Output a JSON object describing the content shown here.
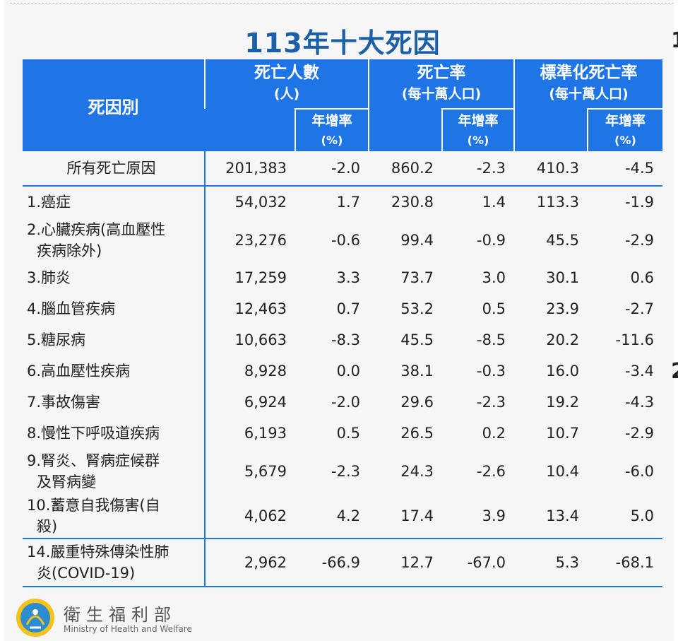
{
  "title": "113年十大死因",
  "header": {
    "cause": "死因別",
    "groups": [
      {
        "label": "死亡人數",
        "sub": "(人)"
      },
      {
        "label": "死亡率",
        "sub": "(每十萬人口)"
      },
      {
        "label": "標準化死亡率",
        "sub": "(每十萬人口)"
      }
    ],
    "growth": "年增率",
    "unit": "(%)"
  },
  "all_causes": {
    "name": "所有死亡原因",
    "values": [
      "201,383",
      "-2.0",
      "860.2",
      "-2.3",
      "410.3",
      "-4.5"
    ]
  },
  "rows": [
    {
      "line1": "1.癌症",
      "line2": "",
      "values": [
        "54,032",
        "1.7",
        "230.8",
        "1.4",
        "113.3",
        "-1.9"
      ]
    },
    {
      "line1": "2.心臟疾病(高血壓性",
      "line2": "疾病除外)",
      "values": [
        "23,276",
        "-0.6",
        "99.4",
        "-0.9",
        "45.5",
        "-2.9"
      ]
    },
    {
      "line1": "3.肺炎",
      "line2": "",
      "values": [
        "17,259",
        "3.3",
        "73.7",
        "3.0",
        "30.1",
        "0.6"
      ]
    },
    {
      "line1": "4.腦血管疾病",
      "line2": "",
      "values": [
        "12,463",
        "0.7",
        "53.2",
        "0.5",
        "23.9",
        "-2.7"
      ]
    },
    {
      "line1": "5.糖尿病",
      "line2": "",
      "values": [
        "10,663",
        "-8.3",
        "45.5",
        "-8.5",
        "20.2",
        "-11.6"
      ]
    },
    {
      "line1": "6.高血壓性疾病",
      "line2": "",
      "values": [
        "8,928",
        "0.0",
        "38.1",
        "-0.3",
        "16.0",
        "-3.4"
      ]
    },
    {
      "line1": "7.事故傷害",
      "line2": "",
      "values": [
        "6,924",
        "-2.0",
        "29.6",
        "-2.3",
        "19.2",
        "-4.3"
      ]
    },
    {
      "line1": "8.慢性下呼吸道疾病",
      "line2": "",
      "values": [
        "6,193",
        "0.5",
        "26.5",
        "0.2",
        "10.7",
        "-2.9"
      ]
    },
    {
      "line1": "9.腎炎、腎病症候群",
      "line2": "及腎病變",
      "values": [
        "5,679",
        "-2.3",
        "24.3",
        "-2.6",
        "10.4",
        "-6.0"
      ]
    },
    {
      "line1": "10.蓄意自我傷害(自",
      "line2": "殺)",
      "values": [
        "4,062",
        "4.2",
        "17.4",
        "3.9",
        "13.4",
        "5.0"
      ]
    }
  ],
  "covid": {
    "line1": "14.嚴重特殊傳染性肺",
    "line2": "炎(COVID-19)",
    "values": [
      "2,962",
      "-66.9",
      "12.7",
      "-67.0",
      "5.3",
      "-68.1"
    ]
  },
  "footer": {
    "org_zh": "衛生福利部",
    "org_en": "Ministry of Health and Welfare",
    "logo_icon": "mohw-emblem-icon"
  },
  "edge_text": [
    "1",
    "2"
  ],
  "colors": {
    "header_bg": "#1f74e6",
    "title": "#1a5fa8",
    "rule": "#1f74e6"
  }
}
